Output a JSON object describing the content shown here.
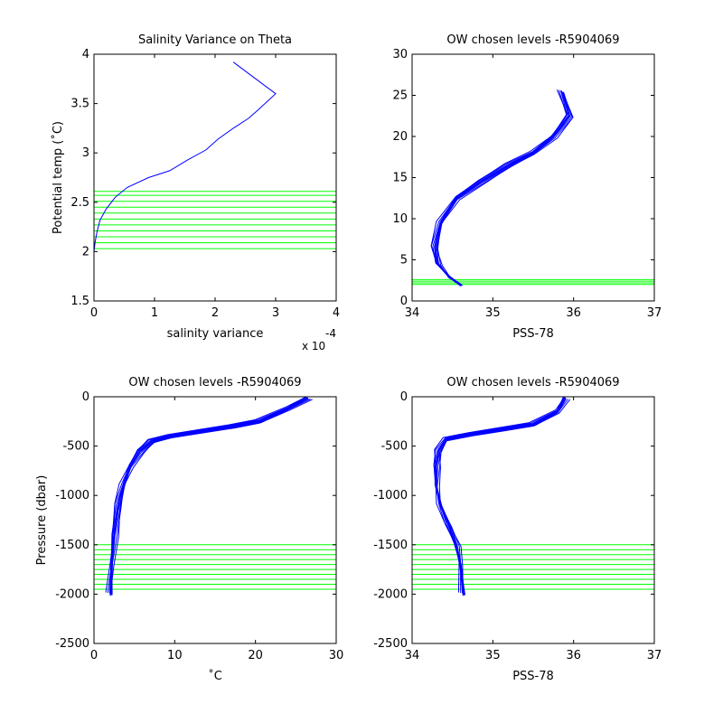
{
  "colors": {
    "profile": "#0000ff",
    "levels": "#00ff00",
    "axes": "#000000",
    "background": "#ffffff"
  },
  "chart_data": [
    {
      "id": "p1",
      "type": "line",
      "title": "Salinity Variance on Theta",
      "xlabel": "salinity variance",
      "ylabel": "Potential temp (˚C)",
      "x_multiplier_label": "x 10",
      "x_multiplier_exp": "-4",
      "xlim": [
        0,
        4
      ],
      "ylim": [
        1.5,
        4
      ],
      "xticks": [
        0,
        1,
        2,
        3,
        4
      ],
      "yticks": [
        1.5,
        2,
        2.5,
        3,
        3.5,
        4
      ],
      "xtick_labels": [
        "0",
        "1",
        "2",
        "3",
        "4"
      ],
      "ytick_labels": [
        "1.5",
        "2",
        "2.5",
        "3",
        "3.5",
        "4"
      ],
      "y_reversed": false,
      "grid": false,
      "series": [
        {
          "x": [
            2.3,
            3.0,
            2.7,
            2.55,
            2.3,
            2.05,
            1.85,
            1.55,
            1.25,
            0.9,
            0.55,
            0.35,
            0.2,
            0.1,
            0.05,
            0.02,
            0.0
          ],
          "y": [
            3.92,
            3.6,
            3.43,
            3.35,
            3.25,
            3.14,
            3.03,
            2.93,
            2.82,
            2.75,
            2.65,
            2.55,
            2.43,
            2.32,
            2.2,
            2.1,
            2.0
          ]
        }
      ],
      "hlines": [
        2.03,
        2.09,
        2.15,
        2.21,
        2.27,
        2.33,
        2.39,
        2.45,
        2.51,
        2.57,
        2.61
      ]
    },
    {
      "id": "p2",
      "type": "line",
      "title": "OW chosen levels -R5904069",
      "xlabel": "PSS-78",
      "ylabel": "",
      "xlim": [
        34,
        37
      ],
      "ylim": [
        0,
        30
      ],
      "xticks": [
        34,
        35,
        36,
        37
      ],
      "yticks": [
        0,
        5,
        10,
        15,
        20,
        25,
        30
      ],
      "xtick_labels": [
        "34",
        "35",
        "36",
        "37"
      ],
      "ytick_labels": [
        "0",
        "5",
        "10",
        "15",
        "20",
        "25",
        "30"
      ],
      "y_reversed": false,
      "grid": false,
      "series": [
        {
          "x": [
            34.6,
            34.45,
            34.32,
            34.28,
            34.35,
            34.55,
            34.85,
            35.2,
            35.5,
            35.75,
            35.95,
            35.85
          ],
          "y": [
            2.0,
            3.0,
            4.5,
            6.5,
            9.5,
            12.5,
            14.5,
            16.5,
            18.0,
            20.0,
            22.5,
            25.5
          ]
        }
      ],
      "hlines": [
        2.0,
        2.2,
        2.4,
        2.6
      ]
    },
    {
      "id": "p3",
      "type": "line",
      "title": "OW chosen levels -R5904069",
      "xlabel": "˚C",
      "ylabel": "Pressure (dbar)",
      "xlim": [
        0,
        30
      ],
      "ylim": [
        -2500,
        0
      ],
      "xticks": [
        0,
        10,
        20,
        30
      ],
      "yticks": [
        0,
        -500,
        -1000,
        -1500,
        -2000,
        -2500
      ],
      "xtick_labels": [
        "0",
        "10",
        "20",
        "30"
      ],
      "ytick_labels": [
        "0",
        "-500",
        "-1000",
        "-1500",
        "-2000",
        "-2500"
      ],
      "y_reversed": false,
      "grid": false,
      "series": [
        {
          "x": [
            2.0,
            2.2,
            2.5,
            3.0,
            3.6,
            4.5,
            5.7,
            7.2,
            9.5,
            13.0,
            17.0,
            20.5,
            24.0,
            26.5
          ],
          "y": [
            -2000,
            -1700,
            -1400,
            -1100,
            -900,
            -700,
            -550,
            -450,
            -400,
            -350,
            -300,
            -250,
            -120,
            -10
          ]
        }
      ],
      "hlines": [
        -1500,
        -1550,
        -1600,
        -1650,
        -1700,
        -1750,
        -1800,
        -1850,
        -1900,
        -1950
      ]
    },
    {
      "id": "p4",
      "type": "line",
      "title": "OW chosen levels -R5904069",
      "xlabel": "PSS-78",
      "ylabel": "",
      "xlim": [
        34,
        37
      ],
      "ylim": [
        -2500,
        0
      ],
      "xticks": [
        34,
        35,
        36,
        37
      ],
      "yticks": [
        0,
        -500,
        -1000,
        -1500,
        -2000,
        -2500
      ],
      "xtick_labels": [
        "34",
        "35",
        "36",
        "37"
      ],
      "ytick_labels": [
        "0",
        "-500",
        "-1000",
        "-1500",
        "-2000",
        "-2500"
      ],
      "y_reversed": false,
      "grid": false,
      "series": [
        {
          "x": [
            34.63,
            34.6,
            34.55,
            34.45,
            34.35,
            34.3,
            34.3,
            34.33,
            34.42,
            34.7,
            35.1,
            35.5,
            35.8,
            35.9
          ],
          "y": [
            -2000,
            -1700,
            -1500,
            -1300,
            -1100,
            -900,
            -700,
            -550,
            -430,
            -380,
            -330,
            -280,
            -150,
            -10
          ]
        }
      ],
      "hlines": [
        -1500,
        -1550,
        -1600,
        -1650,
        -1700,
        -1750,
        -1800,
        -1850,
        -1900,
        -1950
      ]
    }
  ]
}
